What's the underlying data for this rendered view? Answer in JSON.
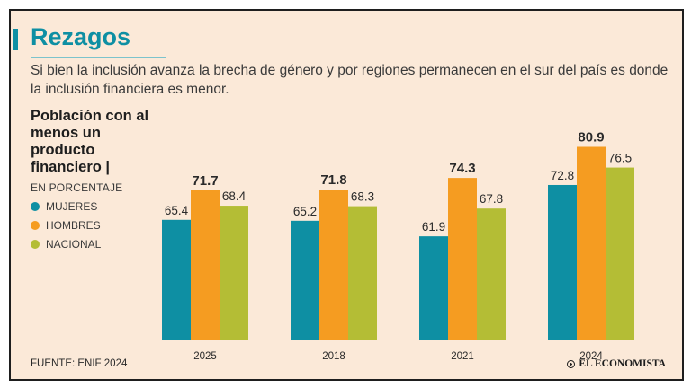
{
  "header": {
    "title": "Rezagos",
    "subtitle": "Si bien la inclusión avanza la brecha de género y por regiones permanecen en el sur del país es donde la inclusión financiera es menor."
  },
  "legend": {
    "title": "Población con al menos un producto financiero |",
    "unit": "EN PORCENTAJE",
    "items": [
      {
        "label": "MUJERES",
        "color": "#0e8fa3"
      },
      {
        "label": "HOMBRES",
        "color": "#f59c21"
      },
      {
        "label": "NACIONAL",
        "color": "#b4bd35"
      }
    ]
  },
  "footer": {
    "source": "FUENTE: ENIF 2024",
    "brand": "EL ECONOMISTA"
  },
  "chart_data": {
    "type": "bar",
    "categories": [
      "2025",
      "2018",
      "2021",
      "2024"
    ],
    "series": [
      {
        "name": "MUJERES",
        "color": "#0e8fa3",
        "values": [
          65.4,
          65.2,
          61.9,
          72.8
        ],
        "bold": false
      },
      {
        "name": "HOMBRES",
        "color": "#f59c21",
        "values": [
          71.7,
          71.8,
          74.3,
          80.9
        ],
        "bold": true
      },
      {
        "name": "NACIONAL",
        "color": "#b4bd35",
        "values": [
          68.4,
          68.3,
          67.8,
          76.5
        ],
        "bold": false
      }
    ],
    "ylim": [
      40,
      85
    ],
    "grid": false,
    "value_labels": true
  }
}
